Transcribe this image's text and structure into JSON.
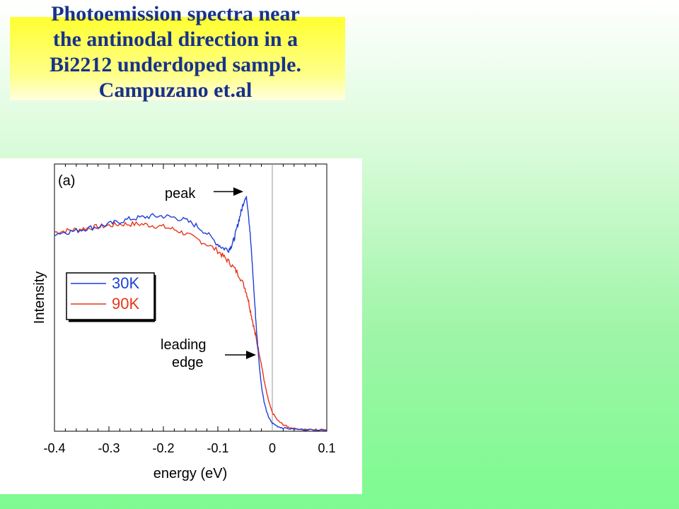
{
  "title": {
    "lines": [
      "Photoemission spectra near",
      "the antinodal direction in a",
      "Bi2212 underdoped sample.",
      "Campuzano et.al"
    ]
  },
  "colors": {
    "series_30K": "#1f3fd6",
    "series_90K": "#e8351a",
    "title_text": "#17328a"
  },
  "chart_data": {
    "type": "line",
    "panel_label": "(a)",
    "xlabel": "energy (eV)",
    "ylabel": "Intensity",
    "xlim": [
      -0.4,
      0.1
    ],
    "ylim": [
      0,
      1
    ],
    "y_tick_labels": false,
    "x_ticks": [
      -0.4,
      -0.3,
      -0.2,
      -0.1,
      0,
      0.1
    ],
    "x_tick_labels": [
      "-0.4",
      "-0.3",
      "-0.2",
      "-0.1",
      "0",
      "0.1"
    ],
    "reference_line_x": 0,
    "legend": {
      "position": "middle-left",
      "entries": [
        "30K",
        "90K"
      ]
    },
    "annotations": [
      {
        "text": "peak",
        "x": -0.045,
        "y": 0.87
      },
      {
        "text": [
          "leading",
          "edge"
        ],
        "x": -0.025,
        "y": 0.28
      }
    ],
    "series": [
      {
        "name": "30K",
        "x": [
          -0.4,
          -0.38,
          -0.36,
          -0.34,
          -0.32,
          -0.3,
          -0.28,
          -0.26,
          -0.24,
          -0.22,
          -0.2,
          -0.18,
          -0.16,
          -0.14,
          -0.12,
          -0.1,
          -0.09,
          -0.08,
          -0.075,
          -0.07,
          -0.065,
          -0.06,
          -0.055,
          -0.05,
          -0.047,
          -0.044,
          -0.04,
          -0.036,
          -0.032,
          -0.028,
          -0.024,
          -0.02,
          -0.015,
          -0.01,
          -0.005,
          0,
          0.01,
          0.02,
          0.04,
          0.06,
          0.08,
          0.1
        ],
        "values": [
          0.74,
          0.745,
          0.75,
          0.76,
          0.765,
          0.775,
          0.785,
          0.795,
          0.8,
          0.805,
          0.805,
          0.8,
          0.79,
          0.77,
          0.74,
          0.7,
          0.685,
          0.68,
          0.695,
          0.72,
          0.76,
          0.8,
          0.84,
          0.875,
          0.87,
          0.82,
          0.72,
          0.6,
          0.47,
          0.35,
          0.25,
          0.17,
          0.11,
          0.07,
          0.045,
          0.03,
          0.018,
          0.012,
          0.008,
          0.006,
          0.005,
          0.005
        ]
      },
      {
        "name": "90K",
        "x": [
          -0.4,
          -0.38,
          -0.36,
          -0.34,
          -0.32,
          -0.3,
          -0.28,
          -0.26,
          -0.24,
          -0.22,
          -0.2,
          -0.18,
          -0.16,
          -0.14,
          -0.12,
          -0.1,
          -0.09,
          -0.08,
          -0.07,
          -0.06,
          -0.05,
          -0.045,
          -0.04,
          -0.035,
          -0.03,
          -0.025,
          -0.02,
          -0.015,
          -0.01,
          -0.005,
          0,
          0.01,
          0.02,
          0.03,
          0.04,
          0.06,
          0.08,
          0.1
        ],
        "values": [
          0.745,
          0.75,
          0.755,
          0.76,
          0.765,
          0.77,
          0.775,
          0.775,
          0.775,
          0.77,
          0.765,
          0.755,
          0.74,
          0.72,
          0.7,
          0.675,
          0.655,
          0.635,
          0.61,
          0.58,
          0.535,
          0.5,
          0.45,
          0.4,
          0.35,
          0.3,
          0.25,
          0.19,
          0.14,
          0.1,
          0.07,
          0.04,
          0.025,
          0.015,
          0.01,
          0.006,
          0.005,
          0.005
        ]
      }
    ]
  }
}
